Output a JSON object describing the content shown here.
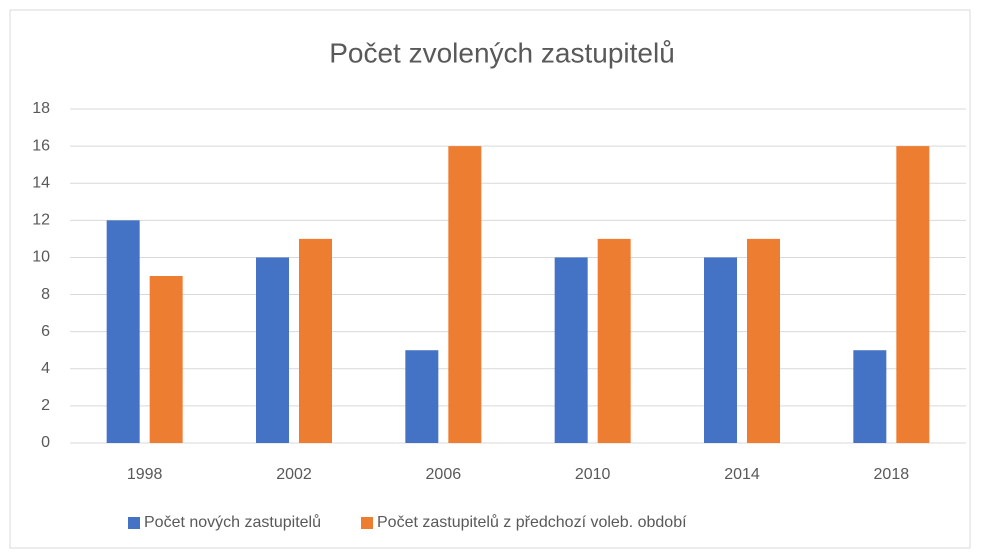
{
  "chart_data": {
    "type": "bar",
    "title": "Počet zvolených zastupitelů",
    "categories": [
      "1998",
      "2002",
      "2006",
      "2010",
      "2014",
      "2018"
    ],
    "series": [
      {
        "name": "Počet nových zastupitelů",
        "color": "#4472c4",
        "values": [
          12,
          10,
          5,
          10,
          10,
          5
        ]
      },
      {
        "name": "Počet zastupitelů z předchozí voleb. období",
        "color": "#ed7d31",
        "values": [
          9,
          11,
          16,
          11,
          11,
          16
        ]
      }
    ],
    "ylim": [
      0,
      18
    ],
    "yticks": [
      0,
      2,
      4,
      6,
      8,
      10,
      12,
      14,
      16,
      18
    ],
    "grid": true,
    "legend": "bottom"
  }
}
